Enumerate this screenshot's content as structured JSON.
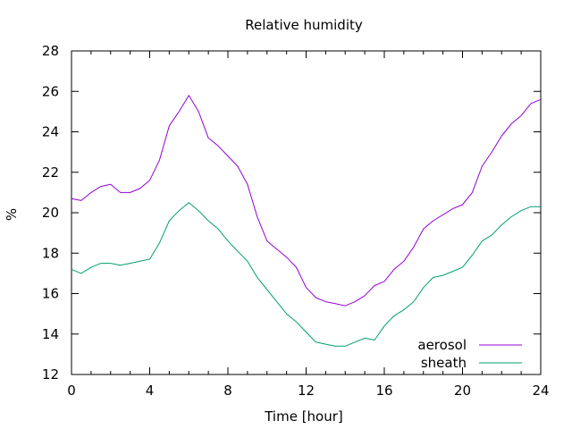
{
  "chart_data": {
    "type": "line",
    "title": "Relative humidity",
    "xlabel": "Time [hour]",
    "ylabel": "%",
    "xlim": [
      0,
      24
    ],
    "ylim": [
      12,
      28
    ],
    "x_ticks": [
      0,
      4,
      8,
      12,
      16,
      20,
      24
    ],
    "y_ticks": [
      12,
      14,
      16,
      18,
      20,
      22,
      24,
      26,
      28
    ],
    "x_tick_labels": [
      "0",
      "4",
      "8",
      "12",
      "16",
      "20",
      "24"
    ],
    "y_tick_labels": [
      "12",
      "14",
      "16",
      "18",
      "20",
      "22",
      "24",
      "26",
      "28"
    ],
    "grid": false,
    "legend_position": "bottom-right",
    "x": [
      0,
      0.5,
      1,
      1.5,
      2,
      2.5,
      3,
      3.5,
      4,
      4.5,
      5,
      5.5,
      6,
      6.5,
      7,
      7.5,
      8,
      8.5,
      9,
      9.5,
      10,
      10.5,
      11,
      11.5,
      12,
      12.5,
      13,
      13.5,
      14,
      14.5,
      15,
      15.5,
      16,
      16.5,
      17,
      17.5,
      18,
      18.5,
      19,
      19.5,
      20,
      20.5,
      21,
      21.5,
      22,
      22.5,
      23,
      23.5,
      24
    ],
    "series": [
      {
        "name": "aerosol",
        "color": "#9400d3",
        "values": [
          20.7,
          20.6,
          21.0,
          21.3,
          21.4,
          21.0,
          21.0,
          21.2,
          21.6,
          22.6,
          24.3,
          25.0,
          25.8,
          25.0,
          23.7,
          23.3,
          22.8,
          22.3,
          21.4,
          19.8,
          18.6,
          18.2,
          17.8,
          17.3,
          16.3,
          15.8,
          15.6,
          15.5,
          15.4,
          15.6,
          15.9,
          16.4,
          16.6,
          17.2,
          17.6,
          18.3,
          19.2,
          19.6,
          19.9,
          20.2,
          20.4,
          21.0,
          22.3,
          23.0,
          23.8,
          24.4,
          24.8,
          25.4,
          25.6
        ]
      },
      {
        "name": "sheath",
        "color": "#009e73",
        "values": [
          17.2,
          17.0,
          17.3,
          17.5,
          17.5,
          17.4,
          17.5,
          17.6,
          17.7,
          18.5,
          19.6,
          20.1,
          20.5,
          20.1,
          19.6,
          19.2,
          18.6,
          18.1,
          17.6,
          16.8,
          16.2,
          15.6,
          15.0,
          14.6,
          14.1,
          13.6,
          13.5,
          13.4,
          13.4,
          13.6,
          13.8,
          13.7,
          14.4,
          14.9,
          15.2,
          15.6,
          16.3,
          16.8,
          16.9,
          17.1,
          17.3,
          17.9,
          18.6,
          18.9,
          19.4,
          19.8,
          20.1,
          20.3,
          20.3
        ]
      }
    ]
  }
}
